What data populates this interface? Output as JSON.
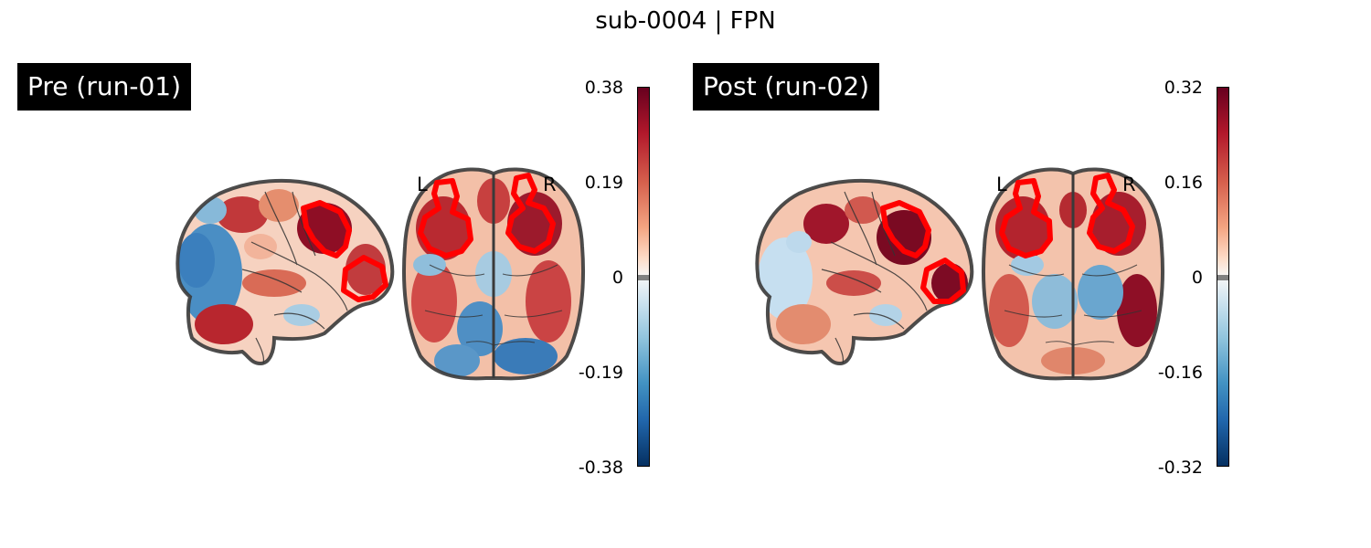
{
  "figure": {
    "title": "sub-0004 | FPN"
  },
  "panels": [
    {
      "label": "Pre (run-01)",
      "colorbar": {
        "ticks": [
          "0.38",
          "0.19",
          "0",
          "-0.19",
          "-0.38"
        ],
        "vmin": -0.38,
        "vmax": 0.38,
        "colormap": "RdBu_r"
      },
      "orientation": {
        "left": "L",
        "right": "R"
      },
      "roi_color": "#ff0000"
    },
    {
      "label": "Post (run-02)",
      "colorbar": {
        "ticks": [
          "0.32",
          "0.16",
          "0",
          "-0.16",
          "-0.32"
        ],
        "vmin": -0.32,
        "vmax": 0.32,
        "colormap": "RdBu_r"
      },
      "orientation": {
        "left": "L",
        "right": "R"
      },
      "roi_color": "#ff0000"
    }
  ]
}
